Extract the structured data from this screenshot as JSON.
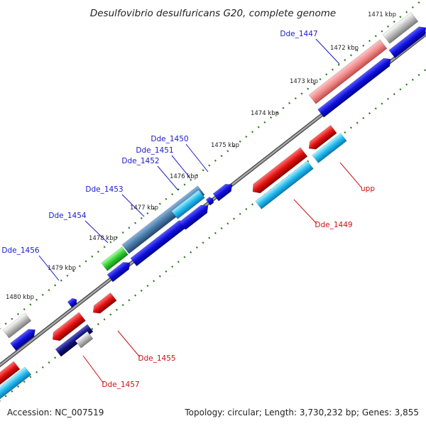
{
  "title": "Desulfovibrio desulfuricans G20, complete genome",
  "footer": {
    "accession": "Accession: NC_007519",
    "summary": "Topology: circular; Length: 3,730,232 bp; Genes: 3,855"
  },
  "ticks": [
    "1471 kbp",
    "1472 kbp",
    "1473 kbp",
    "1474 kbp",
    "1475 kbp",
    "1476 kbp",
    "1477 kbp",
    "1478 kbp",
    "1479 kbp",
    "1480 kbp"
  ],
  "gene_labels": [
    "Dde_1447",
    "Dde_1450",
    "Dde_1451",
    "Dde_1452",
    "Dde_1453",
    "Dde_1454",
    "Dde_1456",
    "upp",
    "Dde_1449",
    "Dde_1455",
    "Dde_1457"
  ],
  "colors": {
    "backbone": "#8a8a8a",
    "dots": "#2e7d1e",
    "cds_forward": "#1414dd",
    "cds_reverse": "#e01414",
    "rna_light": "#22bbee",
    "highlight_pink": "#f08a8a",
    "highlight_steel": "#4a7aa8",
    "grey": "#b8b8b8",
    "green": "#33cc33",
    "label_blue": "#1a1acc",
    "label_red": "#cc1111"
  }
}
